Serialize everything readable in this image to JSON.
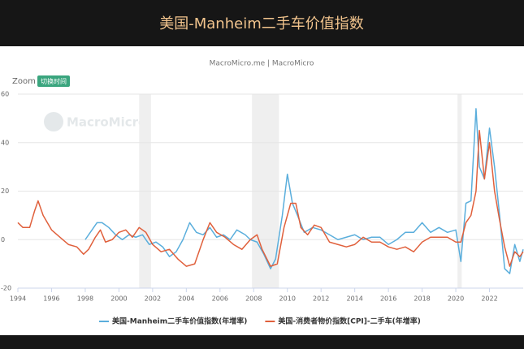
{
  "chart_data": {
    "type": "line",
    "title": "美国-Manheim二手车价值指数",
    "subtitle": "MacroMicro.me | MacroMicro",
    "zoom_label": "Zoom",
    "zoom_button": "切换时间",
    "watermark": "MacroMicro",
    "xlim": [
      1994,
      2024
    ],
    "ylim": [
      -20,
      60
    ],
    "xticks": [
      1994,
      1996,
      1998,
      2000,
      2002,
      2004,
      2006,
      2008,
      2010,
      2012,
      2014,
      2016,
      2018,
      2020,
      2022
    ],
    "yticks": [
      -20,
      0,
      20,
      40,
      60
    ],
    "grid": true,
    "shaded_ranges": [
      {
        "start": 2001.2,
        "end": 2001.9
      },
      {
        "start": 2007.9,
        "end": 2009.5
      },
      {
        "start": 2020.1,
        "end": 2020.35
      }
    ],
    "series": [
      {
        "name": "美国-Manheim二手车价值指数(年增率)",
        "color": "#5aaedc",
        "x": [
          1998.0,
          1998.3,
          1998.7,
          1999.0,
          1999.4,
          1999.8,
          2000.2,
          2000.6,
          2001.0,
          2001.4,
          2001.8,
          2002.2,
          2002.6,
          2003.0,
          2003.4,
          2003.8,
          2004.2,
          2004.6,
          2005.0,
          2005.4,
          2005.8,
          2006.2,
          2006.6,
          2007.0,
          2007.5,
          2007.8,
          2008.2,
          2008.6,
          2009.0,
          2009.3,
          2009.7,
          2010.0,
          2010.3,
          2010.6,
          2011.0,
          2011.5,
          2012.0,
          2012.5,
          2013.0,
          2013.5,
          2014.0,
          2014.5,
          2015.0,
          2015.5,
          2016.0,
          2016.5,
          2017.0,
          2017.5,
          2018.0,
          2018.5,
          2019.0,
          2019.5,
          2020.0,
          2020.3,
          2020.6,
          2020.9,
          2021.2,
          2021.4,
          2021.7,
          2022.0,
          2022.3,
          2022.6,
          2022.9,
          2023.2,
          2023.5,
          2023.8,
          2024.0
        ],
        "values": [
          0,
          3,
          7,
          7,
          5,
          2,
          0,
          2,
          1,
          2,
          -2,
          -1,
          -3,
          -7,
          -5,
          0,
          7,
          3,
          2,
          5,
          1,
          2,
          0,
          4,
          2,
          0,
          -1,
          -6,
          -12,
          -8,
          10,
          27,
          15,
          10,
          3,
          5,
          4,
          2,
          0,
          1,
          2,
          0,
          1,
          1,
          -2,
          0,
          3,
          3,
          7,
          3,
          5,
          3,
          4,
          -9,
          15,
          16,
          54,
          30,
          25,
          46,
          30,
          10,
          -12,
          -14,
          -2,
          -9,
          -4
        ]
      },
      {
        "name": "美国-消费者物价指数[CPI]-二手车(年增率)",
        "color": "#e0603c",
        "x": [
          1994.0,
          1994.3,
          1994.7,
          1995.0,
          1995.2,
          1995.5,
          1996.0,
          1996.5,
          1997.0,
          1997.5,
          1997.9,
          1998.2,
          1998.6,
          1998.9,
          1999.2,
          1999.6,
          2000.0,
          2000.4,
          2000.8,
          2001.2,
          2001.6,
          2002.0,
          2002.5,
          2003.0,
          2003.5,
          2004.0,
          2004.5,
          2005.0,
          2005.4,
          2005.8,
          2006.3,
          2006.8,
          2007.3,
          2007.8,
          2008.2,
          2008.5,
          2009.0,
          2009.4,
          2009.8,
          2010.2,
          2010.5,
          2010.8,
          2011.2,
          2011.6,
          2012.0,
          2012.5,
          2013.0,
          2013.5,
          2014.0,
          2014.5,
          2015.0,
          2015.5,
          2016.0,
          2016.5,
          2017.0,
          2017.5,
          2018.0,
          2018.5,
          2019.0,
          2019.5,
          2020.0,
          2020.3,
          2020.6,
          2020.9,
          2021.2,
          2021.4,
          2021.7,
          2022.0,
          2022.3,
          2022.6,
          2022.9,
          2023.2,
          2023.5,
          2023.8,
          2024.0
        ],
        "values": [
          7,
          5,
          5,
          12,
          16,
          10,
          4,
          1,
          -2,
          -3,
          -6,
          -4,
          1,
          4,
          -1,
          0,
          3,
          4,
          1,
          5,
          3,
          -2,
          -5,
          -4,
          -8,
          -11,
          -10,
          0,
          7,
          3,
          1,
          -2,
          -4,
          0,
          2,
          -4,
          -11,
          -10,
          5,
          15,
          15,
          5,
          2,
          6,
          5,
          -1,
          -2,
          -3,
          -2,
          1,
          -1,
          -1,
          -3,
          -4,
          -3,
          -5,
          -1,
          1,
          1,
          1,
          -1,
          -1,
          7,
          10,
          20,
          45,
          25,
          40,
          20,
          8,
          -3,
          -11,
          -5,
          -7,
          -5
        ]
      }
    ]
  }
}
